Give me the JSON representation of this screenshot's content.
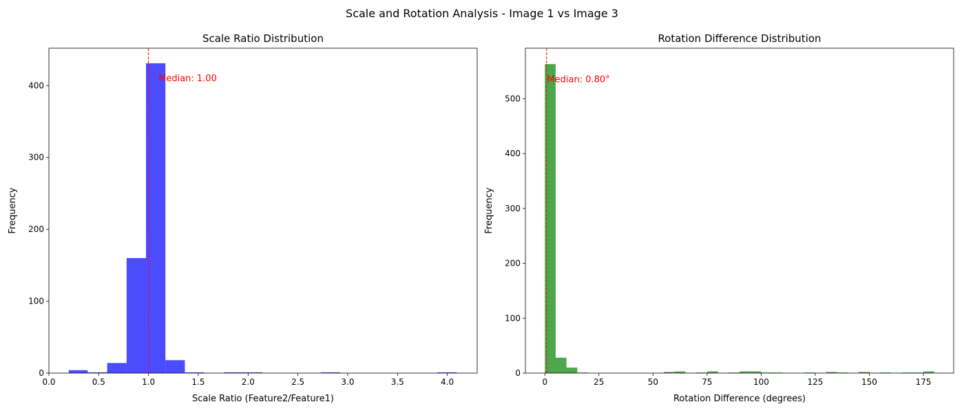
{
  "figure": {
    "suptitle": "Scale and Rotation Analysis - Image 1 vs Image 3"
  },
  "chart_data": [
    {
      "type": "bar",
      "title": "Scale Ratio Distribution",
      "xlabel": "Scale Ratio (Feature2/Feature1)",
      "ylabel": "Frequency",
      "xlim": [
        0.0,
        4.3
      ],
      "ylim": [
        0,
        452
      ],
      "xticks": [
        0.0,
        0.5,
        1.0,
        1.5,
        2.0,
        2.5,
        3.0,
        3.5,
        4.0
      ],
      "xtick_labels": [
        "0.0",
        "0.5",
        "1.0",
        "1.5",
        "2.0",
        "2.5",
        "3.0",
        "3.5",
        "4.0"
      ],
      "yticks": [
        0,
        100,
        200,
        300,
        400
      ],
      "ytick_labels": [
        "0",
        "100",
        "200",
        "300",
        "400"
      ],
      "bar_color": "#0000ff",
      "bar_opacity": 0.7,
      "bins": [
        {
          "x0": 0.2,
          "x1": 0.39,
          "count": 4
        },
        {
          "x0": 0.39,
          "x1": 0.585,
          "count": 1
        },
        {
          "x0": 0.585,
          "x1": 0.78,
          "count": 14
        },
        {
          "x0": 0.78,
          "x1": 0.975,
          "count": 160
        },
        {
          "x0": 0.975,
          "x1": 1.17,
          "count": 431
        },
        {
          "x0": 1.17,
          "x1": 1.365,
          "count": 18
        },
        {
          "x0": 1.365,
          "x1": 1.56,
          "count": 1
        },
        {
          "x0": 1.755,
          "x1": 1.95,
          "count": 1
        },
        {
          "x0": 1.95,
          "x1": 2.145,
          "count": 1
        },
        {
          "x0": 2.73,
          "x1": 2.925,
          "count": 1
        },
        {
          "x0": 3.9,
          "x1": 4.095,
          "count": 1
        }
      ],
      "median": 1.0,
      "median_color": "#ff0000",
      "median_label": "Median: 1.00",
      "median_label_pos": [
        1.1,
        410
      ]
    },
    {
      "type": "bar",
      "title": "Rotation Difference Distribution",
      "xlabel": "Rotation Difference (degrees)",
      "ylabel": "Frequency",
      "xlim": [
        -9,
        189
      ],
      "ylim": [
        0,
        592
      ],
      "xticks": [
        0,
        25,
        50,
        75,
        100,
        125,
        150,
        175
      ],
      "xtick_labels": [
        "0",
        "25",
        "50",
        "75",
        "100",
        "125",
        "150",
        "175"
      ],
      "yticks": [
        0,
        100,
        200,
        300,
        400,
        500
      ],
      "ytick_labels": [
        "0",
        "100",
        "200",
        "300",
        "400",
        "500"
      ],
      "bar_color": "#008000",
      "bar_opacity": 0.7,
      "bins": [
        {
          "x0": 0,
          "x1": 5,
          "count": 563
        },
        {
          "x0": 5,
          "x1": 10,
          "count": 28
        },
        {
          "x0": 10,
          "x1": 15,
          "count": 10
        },
        {
          "x0": 15,
          "x1": 20,
          "count": 1
        },
        {
          "x0": 55,
          "x1": 60,
          "count": 2
        },
        {
          "x0": 60,
          "x1": 65,
          "count": 3
        },
        {
          "x0": 70,
          "x1": 75,
          "count": 1
        },
        {
          "x0": 75,
          "x1": 80,
          "count": 3
        },
        {
          "x0": 85,
          "x1": 90,
          "count": 1
        },
        {
          "x0": 90,
          "x1": 95,
          "count": 3
        },
        {
          "x0": 95,
          "x1": 100,
          "count": 3
        },
        {
          "x0": 100,
          "x1": 105,
          "count": 1
        },
        {
          "x0": 105,
          "x1": 110,
          "count": 1
        },
        {
          "x0": 120,
          "x1": 125,
          "count": 1
        },
        {
          "x0": 130,
          "x1": 135,
          "count": 2
        },
        {
          "x0": 135,
          "x1": 140,
          "count": 1
        },
        {
          "x0": 145,
          "x1": 150,
          "count": 2
        },
        {
          "x0": 155,
          "x1": 160,
          "count": 1
        },
        {
          "x0": 165,
          "x1": 170,
          "count": 1
        },
        {
          "x0": 170,
          "x1": 175,
          "count": 1
        },
        {
          "x0": 175,
          "x1": 180,
          "count": 3
        }
      ],
      "median": 0.8,
      "median_color": "#ff0000",
      "median_label": "Median: 0.80°",
      "median_label_pos": [
        1,
        535
      ]
    }
  ]
}
